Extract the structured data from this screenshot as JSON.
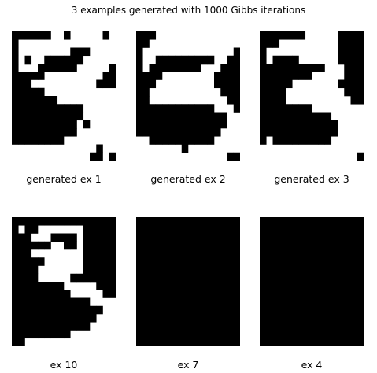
{
  "figure": {
    "title": "3 examples generated with 1000 Gibbs iterations",
    "grid_size": 16,
    "colors": {
      "on": "#000000",
      "off": "#ffffff"
    }
  },
  "panels": [
    {
      "caption": "generated ex 1",
      "pixels": [
        "1111110010000010",
        "1000000000000000",
        "1000000001110000",
        "1010011111100000",
        "1000111111000001",
        "1111100000000011",
        "1110000000000111",
        "1111100000000000",
        "1111111000000000",
        "1111111111100000",
        "1111111111100000",
        "1111111111010000",
        "1111111111000000",
        "1111111100000000",
        "0000000000000100",
        "0000000000001101"
      ]
    },
    {
      "caption": "generated ex 2",
      "pixels": [
        "1110000000000000",
        "1100000000000000",
        "1000000000000001",
        "1001111111110011",
        "1011111111000111",
        "1111000000001111",
        "1110000000001111",
        "1100000000000111",
        "1100000000000011",
        "1111111111110001",
        "1111111111111100",
        "1111111111111100",
        "1111111111111000",
        "0011111111110000",
        "0000000100000000",
        "0000000000000011"
      ]
    },
    {
      "caption": "generated ex 3",
      "pixels": [
        "1111111000001111",
        "1110000000001111",
        "1000000000001111",
        "1011110000001111",
        "1111111111000111",
        "1111111100000111",
        "1111100000001111",
        "1111000000000111",
        "1111000000000011",
        "1111111100000000",
        "1111111111100000",
        "1111111111110000",
        "1111111111110000",
        "1011111111100000",
        "0000000000000000",
        "0000000000000001"
      ]
    },
    {
      "caption": "ex 10",
      "pixels": [
        "1111111111111111",
        "1011000000011111",
        "1110001111011111",
        "1111110011011111",
        "1110000000011111",
        "1111100000011111",
        "1111000000011111",
        "1111000001111111",
        "1111111100000111",
        "1111111110000011",
        "1111111111110000",
        "1111111111111100",
        "1111111111111000",
        "1111111111110000",
        "1111111110000000",
        "1100000000000000"
      ]
    },
    {
      "caption": "ex 7",
      "pixels": [
        "1111111111111111",
        "1111111111111111",
        "1111111111111111",
        "1111111111111111",
        "1111111111111111",
        "1111111111111111",
        "1111111111111111",
        "1111111111111111",
        "1111111111111111",
        "1111111111111111",
        "1111111111111111",
        "1111111111111111",
        "1111111111111111",
        "1111111111111111",
        "1111111111111111",
        "1111111111111111"
      ]
    },
    {
      "caption": "ex 4",
      "pixels": [
        "1111111111111111",
        "1111111111111111",
        "1111111111111111",
        "1111111111111111",
        "1111111111111111",
        "1111111111111111",
        "1111111111111111",
        "1111111111111111",
        "1111111111111111",
        "1111111111111111",
        "1111111111111111",
        "1111111111111111",
        "1111111111111111",
        "1111111111111111",
        "1111111111111111",
        "1111111111111111"
      ]
    }
  ]
}
